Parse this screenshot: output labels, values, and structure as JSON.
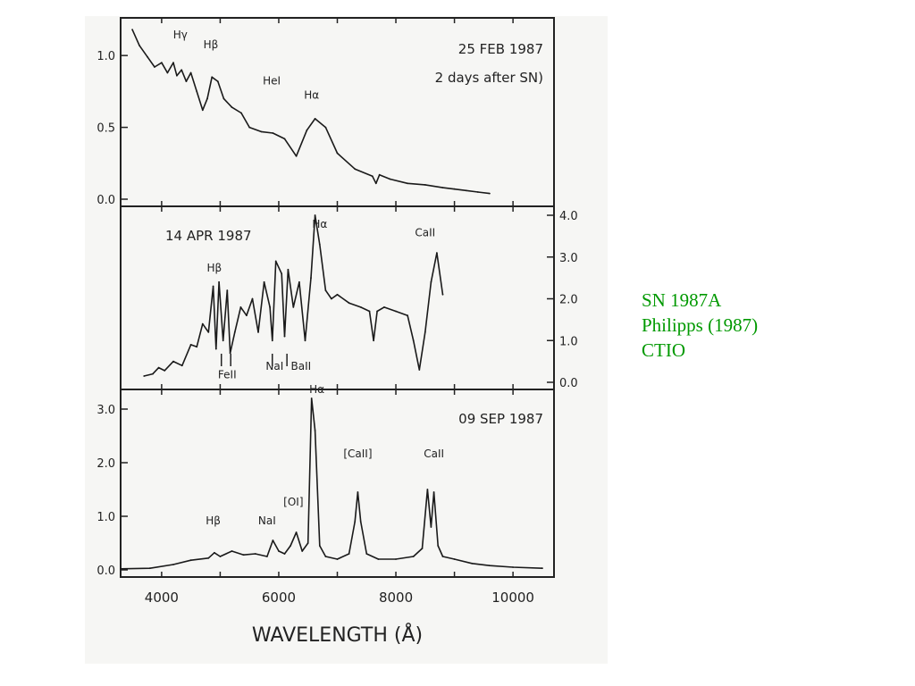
{
  "chart_data": [
    {
      "type": "line",
      "panel": "top",
      "title": "25 FEB 1987",
      "annotation": "2 days after SN)",
      "y_axis_side": "left",
      "yticks": [
        "1.0",
        "0.5",
        "0.0"
      ],
      "ylim": [
        0,
        1.2
      ],
      "xlim": [
        3300,
        10700
      ],
      "line_labels": [
        {
          "text": "Hγ",
          "x": 4320,
          "y": 1.12
        },
        {
          "text": "Hβ",
          "x": 4840,
          "y": 1.05
        },
        {
          "text": "HeI",
          "x": 5880,
          "y": 0.8
        },
        {
          "text": "Hα",
          "x": 6560,
          "y": 0.7
        }
      ],
      "series": [
        {
          "x": [
            3500,
            3620,
            3760,
            3880,
            4000,
            4100,
            4200,
            4260,
            4340,
            4420,
            4500,
            4600,
            4700,
            4780,
            4860,
            4960,
            5060,
            5200,
            5360,
            5500,
            5700,
            5900,
            6100,
            6300,
            6480,
            6620,
            6800,
            7000,
            7300,
            7600,
            7660,
            7720,
            7900,
            8200,
            8500,
            8800,
            9000,
            9200,
            9400,
            9600
          ],
          "y": [
            1.18,
            1.07,
            0.99,
            0.92,
            0.95,
            0.88,
            0.95,
            0.86,
            0.9,
            0.82,
            0.88,
            0.75,
            0.62,
            0.7,
            0.85,
            0.82,
            0.7,
            0.64,
            0.6,
            0.5,
            0.47,
            0.46,
            0.42,
            0.3,
            0.48,
            0.56,
            0.5,
            0.32,
            0.21,
            0.16,
            0.11,
            0.17,
            0.14,
            0.11,
            0.1,
            0.08,
            0.07,
            0.06,
            0.05,
            0.04
          ]
        }
      ]
    },
    {
      "type": "line",
      "panel": "middle",
      "title": "14 APR 1987",
      "y_axis_side": "right",
      "yticks": [
        "4.0",
        "3.0",
        "2.0",
        "1.0",
        "0.0"
      ],
      "ylim": [
        0,
        4.0
      ],
      "xlim": [
        3300,
        10700
      ],
      "line_labels": [
        {
          "text": "Hα",
          "x": 6700,
          "y": 3.7
        },
        {
          "text": "CaII",
          "x": 8500,
          "y": 3.5
        },
        {
          "text": "Hβ",
          "x": 4900,
          "y": 2.65
        },
        {
          "text": "FeII",
          "x": 5120,
          "y": 0.1
        },
        {
          "text": "NaI",
          "x": 5930,
          "y": 0.3
        },
        {
          "text": "BaII",
          "x": 6380,
          "y": 0.3
        }
      ],
      "series": [
        {
          "x": [
            3700,
            3850,
            3950,
            4050,
            4200,
            4350,
            4500,
            4600,
            4700,
            4800,
            4880,
            4930,
            4980,
            5050,
            5120,
            5170,
            5250,
            5350,
            5450,
            5550,
            5650,
            5750,
            5850,
            5890,
            5950,
            6050,
            6100,
            6160,
            6250,
            6350,
            6450,
            6550,
            6620,
            6700,
            6800,
            6900,
            7000,
            7200,
            7400,
            7550,
            7620,
            7680,
            7800,
            8000,
            8200,
            8300,
            8400,
            8500,
            8600,
            8700,
            8800
          ],
          "y": [
            0.15,
            0.2,
            0.35,
            0.28,
            0.5,
            0.4,
            0.9,
            0.85,
            1.4,
            1.2,
            2.3,
            0.8,
            2.4,
            1.0,
            2.2,
            0.7,
            1.2,
            1.8,
            1.6,
            2.0,
            1.2,
            2.4,
            1.8,
            1.0,
            2.9,
            2.6,
            1.1,
            2.7,
            1.8,
            2.4,
            1.0,
            2.5,
            4.0,
            3.3,
            2.2,
            2.0,
            2.1,
            1.9,
            1.8,
            1.7,
            1.0,
            1.7,
            1.8,
            1.7,
            1.6,
            1.0,
            0.3,
            1.2,
            2.4,
            3.1,
            2.1
          ]
        }
      ]
    },
    {
      "type": "line",
      "panel": "bottom",
      "title": "09 SEP 1987",
      "y_axis_side": "left",
      "yticks": [
        "3.0",
        "2.0",
        "1.0",
        "0.0"
      ],
      "ylim": [
        0,
        3.2
      ],
      "xlim": [
        3300,
        10700
      ],
      "xticks": [
        "4000",
        "6000",
        "8000",
        "10000"
      ],
      "xlabel": "WAVELENGTH (Å)",
      "line_labels": [
        {
          "text": "Hα",
          "x": 6650,
          "y": 3.3
        },
        {
          "text": "[CaII]",
          "x": 7350,
          "y": 2.1
        },
        {
          "text": "CaII",
          "x": 8650,
          "y": 2.1
        },
        {
          "text": "[OI]",
          "x": 6250,
          "y": 1.2
        },
        {
          "text": "Hβ",
          "x": 4880,
          "y": 0.85
        },
        {
          "text": "NaI",
          "x": 5800,
          "y": 0.85
        }
      ],
      "series": [
        {
          "x": [
            3300,
            3800,
            4200,
            4500,
            4800,
            4900,
            5000,
            5200,
            5400,
            5600,
            5800,
            5900,
            6000,
            6100,
            6200,
            6300,
            6400,
            6500,
            6560,
            6620,
            6700,
            6800,
            7000,
            7200,
            7300,
            7350,
            7400,
            7500,
            7700,
            8000,
            8300,
            8450,
            8540,
            8600,
            8650,
            8720,
            8800,
            9000,
            9300,
            9600,
            10000,
            10500
          ],
          "y": [
            0.02,
            0.03,
            0.1,
            0.18,
            0.22,
            0.32,
            0.25,
            0.35,
            0.28,
            0.3,
            0.25,
            0.55,
            0.35,
            0.3,
            0.45,
            0.7,
            0.35,
            0.5,
            3.2,
            2.6,
            0.45,
            0.25,
            0.2,
            0.3,
            0.9,
            1.45,
            0.9,
            0.3,
            0.2,
            0.2,
            0.25,
            0.4,
            1.5,
            0.8,
            1.45,
            0.45,
            0.25,
            0.2,
            0.12,
            0.08,
            0.05,
            0.03
          ]
        }
      ]
    }
  ],
  "caption": {
    "line1": "SN 1987A",
    "line2": "Philipps (1987)",
    "line3": "CTIO",
    "color": "#009900"
  }
}
